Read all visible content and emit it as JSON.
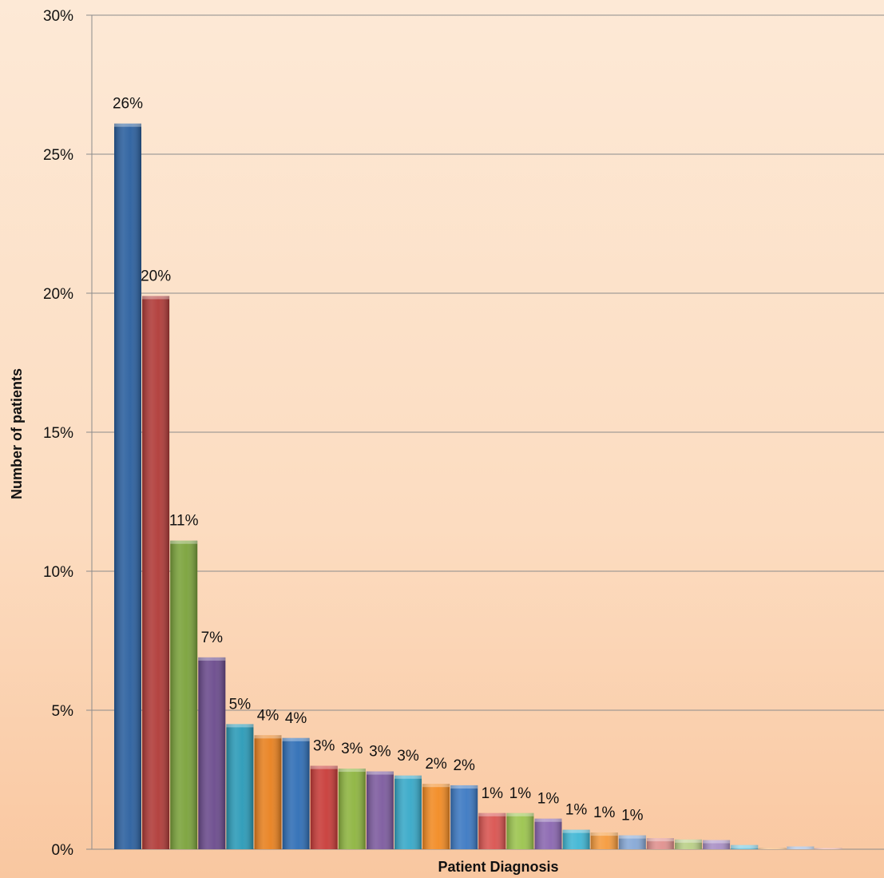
{
  "chart_data": {
    "type": "bar",
    "title": "",
    "xlabel": "Patient Diagnosis",
    "ylabel": "Number of patients",
    "ylim": [
      0,
      30
    ],
    "y_ticks": [
      "0%",
      "5%",
      "10%",
      "15%",
      "20%",
      "25%",
      "30%"
    ],
    "grid": true,
    "values": [
      26.1,
      19.9,
      11.1,
      6.9,
      4.5,
      4.1,
      4.0,
      3.0,
      2.9,
      2.8,
      2.65,
      2.35,
      2.3,
      1.3,
      1.3,
      1.1,
      0.7,
      0.6,
      0.5,
      0.4,
      0.35,
      0.33,
      0.15,
      0.05,
      0.1,
      0.03
    ],
    "data_labels": [
      "26%",
      "20%",
      "11%",
      "7%",
      "5%",
      "4%",
      "4%",
      "3%",
      "3%",
      "3%",
      "3%",
      "2%",
      "2%",
      "1%",
      "1%",
      "1%",
      "1%",
      "1%",
      "1%",
      "",
      "",
      "",
      "",
      "",
      "",
      ""
    ],
    "colors": [
      "#2a5f9e",
      "#b03a37",
      "#7aa23a",
      "#6a4a8c",
      "#2a9ab7",
      "#e8801e",
      "#2e6db5",
      "#c83b38",
      "#8db43f",
      "#7c5a9e",
      "#36a8c8",
      "#f28a22",
      "#3b78c2",
      "#d9534f",
      "#9bc44d",
      "#8a66b0",
      "#3fb6d4",
      "#f59a3c",
      "#86a8d6",
      "#e0908e",
      "#b9cf86",
      "#a98fc5",
      "#6fc6df",
      "#f7b26b",
      "#9fb7dc",
      "#e7aaa8"
    ]
  }
}
